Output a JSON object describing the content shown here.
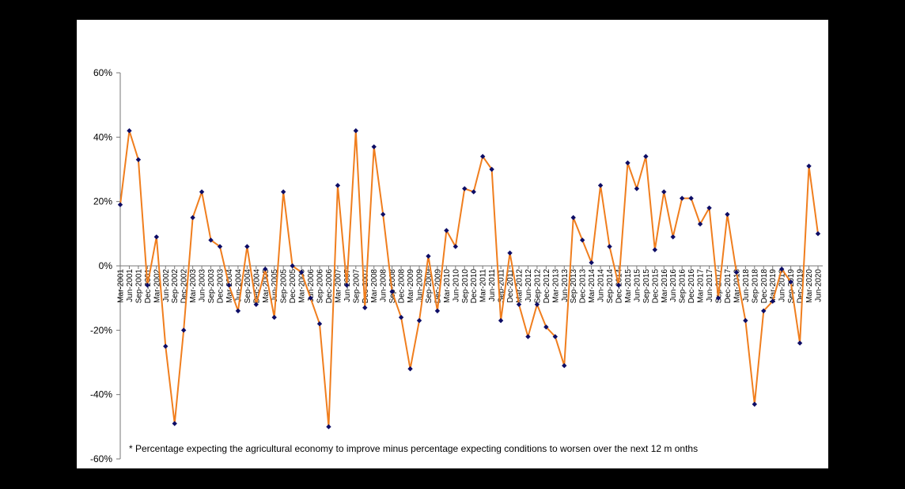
{
  "chart_data": {
    "type": "line",
    "title": "",
    "xlabel": "",
    "ylabel": "",
    "ylim": [
      -60,
      60
    ],
    "yticks": [
      60,
      40,
      20,
      0,
      -20,
      -40,
      -60
    ],
    "ytick_suffix": "%",
    "colors": {
      "line": "#F07E1E",
      "marker": "#0D0D66"
    },
    "x": [
      "Mar-2001",
      "Jun-2001",
      "Sep-2001",
      "Dec-2001",
      "Mar-2002",
      "Jun-2002",
      "Sep-2002",
      "Dec-2002",
      "Mar-2003",
      "Jun-2003",
      "Sep-2003",
      "Dec-2003",
      "Mar-2004",
      "Jun-2004",
      "Sep-2004",
      "Dec-2004",
      "Mar-2005",
      "Jun-2005",
      "Sep-2005",
      "Dec-2005",
      "Mar-2006",
      "Jun-2006",
      "Sep-2006",
      "Dec-2006",
      "Mar-2007",
      "Jun-2007",
      "Sep-2007",
      "Dec-2007",
      "Mar-2008",
      "Jun-2008",
      "Sep-2008",
      "Dec-2008",
      "Mar-2009",
      "Jun-2009",
      "Sep-2009",
      "Dec-2009",
      "Mar-2010",
      "Jun-2010",
      "Sep-2010",
      "Dec-2010",
      "Mar-2011",
      "Jun-2011",
      "Sep-2011",
      "Dec-2011",
      "Mar-2012",
      "Jun-2012",
      "Sep-2012",
      "Dec-2012",
      "Mar-2013",
      "Jun-2013",
      "Sep-2013",
      "Dec-2013",
      "Mar-2014",
      "Jun-2014",
      "Sep-2014",
      "Dec-2014",
      "Mar-2015",
      "Jun-2015",
      "Sep-2015",
      "Dec-2015",
      "Mar-2016",
      "Jun-2016",
      "Sep-2016",
      "Dec-2016",
      "Mar-2017",
      "Jun-2017",
      "Sep-2017",
      "Dec-2017",
      "Mar-2018",
      "Jun-2018",
      "Sep-2018",
      "Dec-2018",
      "Mar-2019",
      "Jun-2019",
      "Sep-2019",
      "Dec-2019",
      "Mar-2020",
      "Jun-2020"
    ],
    "series": [
      {
        "values": [
          19,
          42,
          33,
          -6,
          9,
          -25,
          -49,
          -20,
          15,
          23,
          8,
          6,
          -6,
          -14,
          6,
          -12,
          -1,
          -16,
          23,
          0,
          -2,
          -10,
          -18,
          -50,
          25,
          -6,
          42,
          -13,
          37,
          16,
          -8,
          -16,
          -32,
          -17,
          3,
          -14,
          11,
          6,
          24,
          23,
          34,
          30,
          -17,
          4,
          -12,
          -22,
          -12,
          -19,
          -22,
          -31,
          15,
          8,
          1,
          25,
          6,
          -6,
          32,
          24,
          34,
          5,
          23,
          9,
          21,
          21,
          13,
          18,
          -10,
          16,
          -2,
          -17,
          -43,
          -14,
          -11,
          -1,
          -5,
          -24,
          31,
          10
        ]
      }
    ],
    "footnote": "* Percentage expecting the agricultural economy to improve minus percentage expecting conditions to worsen over the next 12 m onths"
  }
}
